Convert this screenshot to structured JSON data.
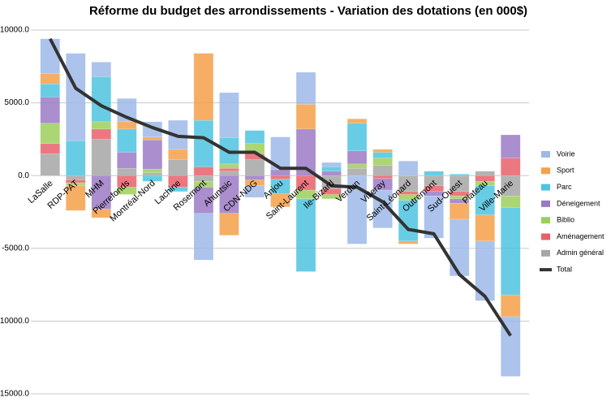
{
  "chart_data": {
    "type": "bar",
    "stacked": true,
    "title": "Réforme du budget des arrondissements - Variation des dotations (en 000$)",
    "categories": [
      "LaSalle",
      "RDP-PAT",
      "MHM",
      "Pierrefonds",
      "Montréal-Nord",
      "Lachine",
      "Rosemont",
      "Ahuntsic",
      "CDN-NDG",
      "Anjou",
      "Saint-Laurent",
      "Ile-Bizard",
      "Verdun",
      "Villeray",
      "Saint-Léonard",
      "Outremont",
      "Sud-Ouest",
      "Plateau",
      "Ville-Marie"
    ],
    "series": [
      {
        "name": "Voirie",
        "color": "#9db8e8",
        "values": [
          2400,
          6000,
          1000,
          1600,
          1050,
          2000,
          -3200,
          3100,
          -800,
          2250,
          2200,
          300,
          -4700,
          -2600,
          1000,
          -2900,
          -3900,
          -4100,
          -4100
        ]
      },
      {
        "name": "Sport",
        "color": "#f5a04a",
        "values": [
          700,
          -1700,
          -600,
          500,
          200,
          700,
          4600,
          -1500,
          -400,
          -900,
          1700,
          0,
          300,
          200,
          -200,
          0,
          -1100,
          -1800,
          -1500
        ]
      },
      {
        "name": "Parc",
        "color": "#4fc3e0",
        "values": [
          900,
          2400,
          3100,
          1600,
          -400,
          -300,
          3200,
          1800,
          900,
          -1000,
          -5000,
          300,
          1900,
          400,
          -2800,
          300,
          100,
          -2000,
          -6000
        ]
      },
      {
        "name": "Déneigement",
        "color": "#9b7ac4",
        "values": [
          1800,
          0,
          -2300,
          1100,
          2000,
          0,
          -1800,
          -2600,
          -300,
          400,
          3200,
          300,
          900,
          -800,
          0,
          -300,
          -300,
          0,
          1600
        ]
      },
      {
        "name": "Biblio",
        "color": "#9ccf5a",
        "values": [
          1400,
          -200,
          500,
          -500,
          250,
          0,
          -400,
          300,
          700,
          0,
          -600,
          -300,
          300,
          500,
          -400,
          0,
          -200,
          -300,
          -800
        ]
      },
      {
        "name": "Aménagement",
        "color": "#e8606a",
        "values": [
          700,
          -200,
          700,
          -800,
          0,
          -800,
          600,
          200,
          400,
          -250,
          -1000,
          -400,
          0,
          -200,
          -200,
          -400,
          -300,
          -400,
          1200
        ]
      },
      {
        "name": "Admin général",
        "color": "#a6a6a6",
        "values": [
          1500,
          -300,
          2500,
          500,
          200,
          1100,
          -400,
          300,
          1100,
          0,
          0,
          -900,
          500,
          700,
          -1100,
          -700,
          -1100,
          300,
          -1400
        ]
      },
      {
        "name": "Total",
        "color": "#333333",
        "type": "line",
        "values": [
          9400,
          6000,
          4800,
          4000,
          3300,
          2700,
          2600,
          1600,
          1600,
          500,
          500,
          -700,
          -800,
          -1800,
          -3700,
          -4000,
          -6800,
          -8300,
          -11000
        ]
      }
    ],
    "ylim": [
      -15000,
      10000
    ],
    "yticks": [
      {
        "value": 10000,
        "label": "10000.0"
      },
      {
        "value": 5000,
        "label": "5000.0"
      },
      {
        "value": 0,
        "label": "0.0"
      },
      {
        "value": -5000,
        "label": "-5000.0"
      },
      {
        "value": -10000,
        "label": "-10000.0"
      },
      {
        "value": -15000,
        "label": "-15000.0"
      }
    ],
    "grid": true,
    "legend": "right"
  }
}
